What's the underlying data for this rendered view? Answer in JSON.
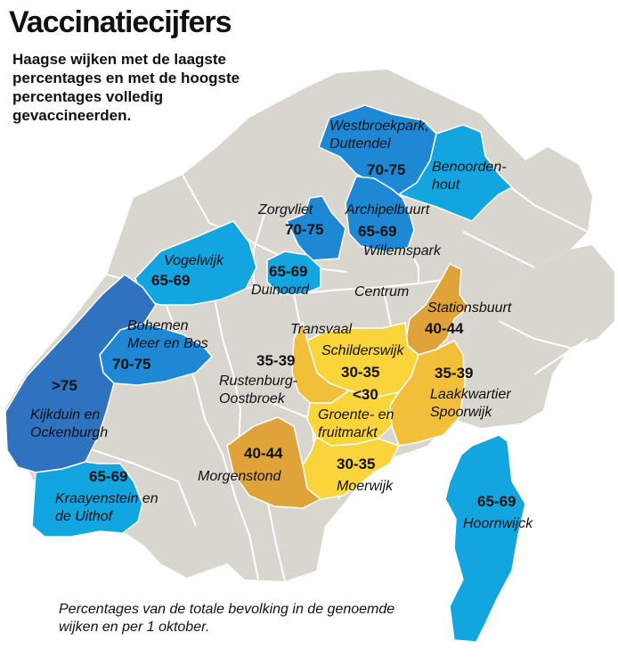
{
  "title": "Vaccinatiecijfers",
  "subtitle": "Haagse wijken met de laagste percentages en met de hoogste percentages volledig gevaccineerden.",
  "footnote": "Percentages van de totale bevolking in de genoemde wijken en per 1 oktober.",
  "colors": {
    "background": "#ffffff",
    "neighbourhood_grey": "#d9d6d0",
    "border": "#ffffff",
    "dark_blue": "#2f72c0",
    "mid_blue": "#1e88d4",
    "light_blue": "#12a5e0",
    "dark_orange": "#e0a33a",
    "mid_yellow": "#f2bf3a",
    "light_yellow": "#f9d43a"
  },
  "wijken": [
    {
      "id": "westbroekpark",
      "name": "Westbroekpark, Duttendel",
      "percentage": "70-75"
    },
    {
      "id": "benoordenhout",
      "name": "Benoorden- hout",
      "percentage": ""
    },
    {
      "id": "zorgvliet",
      "name": "Zorgvliet",
      "percentage": "70-75"
    },
    {
      "id": "archipelbuurt",
      "name": "Archipelbuurt",
      "percentage": "65-69"
    },
    {
      "id": "willemspark",
      "name": "Willemspark",
      "percentage": ""
    },
    {
      "id": "vogelwijk",
      "name": "Vogelwijk",
      "percentage": "65-69"
    },
    {
      "id": "duinoord",
      "name": "Duinoord",
      "percentage": "65-69"
    },
    {
      "id": "centrum",
      "name": "Centrum",
      "percentage": ""
    },
    {
      "id": "stationsbuurt",
      "name": "Stationsbuurt",
      "percentage": "40-44"
    },
    {
      "id": "transvaal",
      "name": "Transvaal",
      "percentage": ""
    },
    {
      "id": "schilderswijk",
      "name": "Schilderswijk",
      "percentage": "30-35"
    },
    {
      "id": "bohemen",
      "name": "Bohemen Meer en Bos",
      "percentage": "70-75"
    },
    {
      "id": "rustenburg",
      "name": "Rustenburg- Oostbroek",
      "percentage": "35-39"
    },
    {
      "id": "laakkwartier",
      "name": "Laakkwartier Spoorwijk",
      "percentage": "35-39"
    },
    {
      "id": "groente",
      "name": "Groente- en fruitmarkt",
      "percentage": "<30"
    },
    {
      "id": "kijkduin",
      "name": "Kijkduin en Ockenburgh",
      "percentage": ">75"
    },
    {
      "id": "morgenstond",
      "name": "Morgenstond",
      "percentage": "40-44"
    },
    {
      "id": "moerwijk",
      "name": "Moerwijk",
      "percentage": "30-35"
    },
    {
      "id": "kraayenstein",
      "name": "Kraayenstein en de Uithof",
      "percentage": "65-69"
    },
    {
      "id": "hoornwijck",
      "name": "Hoornwijck",
      "percentage": "65-69"
    }
  ]
}
